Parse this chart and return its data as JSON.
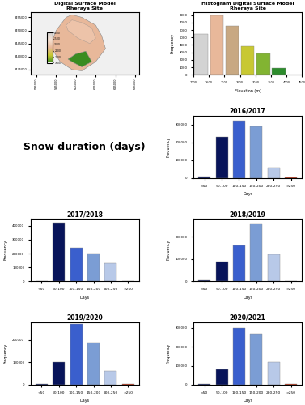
{
  "categories": [
    "<50",
    "50-100",
    "100-150",
    "150-200",
    "200-250",
    ">250"
  ],
  "bar_colors": [
    "#08145a",
    "#08145a",
    "#3a5fcd",
    "#7b9dd4",
    "#b8c9e8",
    "#cc2200"
  ],
  "years": [
    "2016/2017",
    "2017/2018",
    "2018/2019",
    "2019/2020",
    "2020/2021"
  ],
  "data": {
    "2016/2017": [
      10000,
      230000,
      320000,
      290000,
      60000,
      5000
    ],
    "2017/2018": [
      5000,
      420000,
      240000,
      200000,
      130000,
      3000
    ],
    "2018/2019": [
      5000,
      90000,
      160000,
      260000,
      120000,
      3000
    ],
    "2019/2020": [
      5000,
      100000,
      270000,
      190000,
      60000,
      3000
    ],
    "2020/2021": [
      3000,
      80000,
      300000,
      270000,
      120000,
      3000
    ]
  },
  "ylims": {
    "2016/2017": 350000,
    "2017/2018": 450000,
    "2018/2019": 280000,
    "2019/2020": 280000,
    "2020/2021": 330000
  },
  "histogram_dsm": {
    "centers": [
      1250,
      1750,
      2250,
      2750,
      3250,
      3750
    ],
    "values": [
      5500,
      8000,
      6500,
      3800,
      2900,
      900
    ],
    "colors": [
      "#d3d3d3",
      "#e8b89a",
      "#c8a882",
      "#c8c832",
      "#82b432",
      "#2d8c2d"
    ]
  },
  "map_xticks": [
    585000,
    595000,
    605000,
    615000,
    625000,
    635000
  ],
  "map_xtick_labels": [
    "585000",
    "595000",
    "605000",
    "615000",
    "625000",
    "635000"
  ],
  "map_yticks": [
    3435000,
    3440000,
    3445000,
    3450000,
    3455000
  ],
  "map_ytick_labels": [
    "3435000",
    "3440000",
    "3445000",
    "3450000",
    "3455000"
  ],
  "map_xlim": [
    582000,
    637000
  ],
  "map_ylim": [
    3433000,
    3457000
  ],
  "colorbar_ticks": [
    1500,
    2000,
    2500,
    3000,
    3500,
    4000
  ],
  "colorbar_ticklabels": [
    "1500",
    "2000",
    "2500",
    "3000",
    "3500",
    "4000"
  ],
  "snow_label_text": "Snow duration (days)",
  "xlabel": "Days",
  "ylabel": "Frequency",
  "hist_xlabel": "Elevation (m)",
  "hist_title1": "Histogram Digital Surface Model",
  "hist_title2": "Rheraya Site",
  "map_title1": "Digital Surface Model",
  "map_title2": "Rheraya Site"
}
